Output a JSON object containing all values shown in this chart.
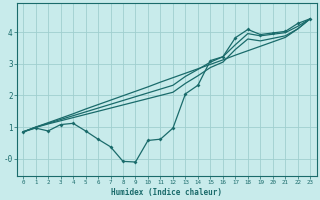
{
  "background_color": "#c8ebeb",
  "grid_color": "#a0cfcf",
  "line_color": "#1a6b6b",
  "xlabel": "Humidex (Indice chaleur)",
  "xlim": [
    -0.5,
    23.5
  ],
  "ylim": [
    -0.55,
    4.9
  ],
  "yticks": [
    0,
    1,
    2,
    3,
    4
  ],
  "ytick_labels": [
    "-0",
    "1",
    "2",
    "3",
    "4"
  ],
  "line1_x": [
    0,
    1,
    2,
    3,
    4,
    5,
    6,
    7,
    8,
    9,
    10,
    11,
    12,
    13,
    14,
    15,
    16,
    17,
    18,
    19,
    20,
    21,
    22,
    23
  ],
  "line1_y": [
    0.85,
    0.97,
    0.88,
    1.08,
    1.12,
    0.88,
    0.62,
    0.38,
    -0.08,
    -0.1,
    0.58,
    0.62,
    0.97,
    2.05,
    2.32,
    3.1,
    3.22,
    3.82,
    4.08,
    3.92,
    3.97,
    4.02,
    4.27,
    4.42
  ],
  "line2_x": [
    0,
    1,
    2,
    3,
    4,
    5,
    6,
    7,
    8,
    9,
    10,
    11,
    12,
    13,
    14,
    15,
    16,
    17,
    18,
    19,
    20,
    21,
    22,
    23
  ],
  "line2_y": [
    0.85,
    1.0,
    1.14,
    1.28,
    1.42,
    1.57,
    1.71,
    1.85,
    1.99,
    2.13,
    2.27,
    2.42,
    2.56,
    2.7,
    2.84,
    2.98,
    3.12,
    3.27,
    3.41,
    3.55,
    3.69,
    3.83,
    4.1,
    4.42
  ],
  "line3_x": [
    0,
    1,
    2,
    3,
    4,
    5,
    6,
    7,
    8,
    9,
    10,
    11,
    12,
    13,
    14,
    15,
    16,
    17,
    18,
    19,
    20,
    21,
    22,
    23
  ],
  "line3_y": [
    0.85,
    1.0,
    1.12,
    1.24,
    1.36,
    1.48,
    1.6,
    1.72,
    1.84,
    1.96,
    2.08,
    2.2,
    2.32,
    2.6,
    2.82,
    3.05,
    3.22,
    3.6,
    3.95,
    3.88,
    3.93,
    3.98,
    4.18,
    4.42
  ],
  "line4_x": [
    0,
    1,
    2,
    3,
    4,
    5,
    6,
    7,
    8,
    9,
    10,
    11,
    12,
    13,
    14,
    15,
    16,
    17,
    18,
    19,
    20,
    21,
    22,
    23
  ],
  "line4_y": [
    0.85,
    0.99,
    1.1,
    1.2,
    1.3,
    1.4,
    1.5,
    1.6,
    1.7,
    1.8,
    1.9,
    2.0,
    2.1,
    2.38,
    2.62,
    2.88,
    3.05,
    3.45,
    3.78,
    3.72,
    3.8,
    3.88,
    4.1,
    4.42
  ]
}
